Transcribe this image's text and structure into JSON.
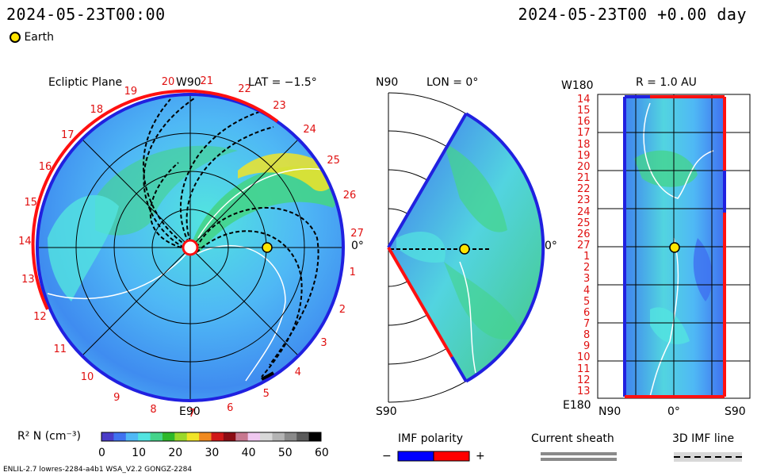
{
  "header": {
    "left_time": "2024-05-23T00:00",
    "right_time": "2024-05-23T00 +0.00 day",
    "earth_legend": "Earth"
  },
  "panels": {
    "ecliptic": {
      "title": "Ecliptic Plane",
      "lat": "LAT = −1.5°",
      "top": "W90",
      "bottom": "E90",
      "right": "0°",
      "sectors": [
        "20",
        "21",
        "22",
        "23",
        "24",
        "25",
        "26",
        "27",
        "1",
        "2",
        "3",
        "4",
        "5",
        "6",
        "7",
        "8",
        "9",
        "10",
        "11",
        "12",
        "13",
        "14",
        "15",
        "16",
        "17",
        "18",
        "19"
      ]
    },
    "meridional": {
      "top": "N90",
      "lon": "LON = 0°",
      "bottom": "S90",
      "right": "0°"
    },
    "radial": {
      "top_left": "W180",
      "title": "R = 1.0 AU",
      "bottom_left": "E180",
      "x_labels": [
        "N90",
        "0°",
        "S90"
      ],
      "sectors": [
        "14",
        "15",
        "16",
        "17",
        "18",
        "19",
        "20",
        "21",
        "22",
        "23",
        "24",
        "25",
        "26",
        "27",
        "1",
        "2",
        "3",
        "4",
        "5",
        "6",
        "7",
        "8",
        "9",
        "10",
        "11",
        "12",
        "13"
      ]
    }
  },
  "colorbar": {
    "label": "R² N (cm⁻³)",
    "ticks": [
      "0",
      "10",
      "20",
      "30",
      "40",
      "50",
      "60"
    ],
    "stops": [
      "#4a3cc8",
      "#3f72f0",
      "#4fb8f5",
      "#52e4e0",
      "#44d48a",
      "#2eb82a",
      "#9ad82a",
      "#f0e428",
      "#f08a20",
      "#d01818",
      "#8c0c14",
      "#c87890",
      "#f0c8f0",
      "#d8d8d8",
      "#b4b4b4",
      "#8a8a8a",
      "#5a5a5a",
      "#000000"
    ]
  },
  "legend": {
    "imf_polarity": "IMF polarity",
    "minus": "−",
    "plus": "+",
    "neg_color": "#0000ff",
    "pos_color": "#ff0000",
    "current_sheath": "Current sheath",
    "imf_line": "3D IMF line"
  },
  "footer": {
    "left": "ENLIL-2.7 lowres-2284-a4b1 WSA_V2.2 GONGZ-2284"
  }
}
